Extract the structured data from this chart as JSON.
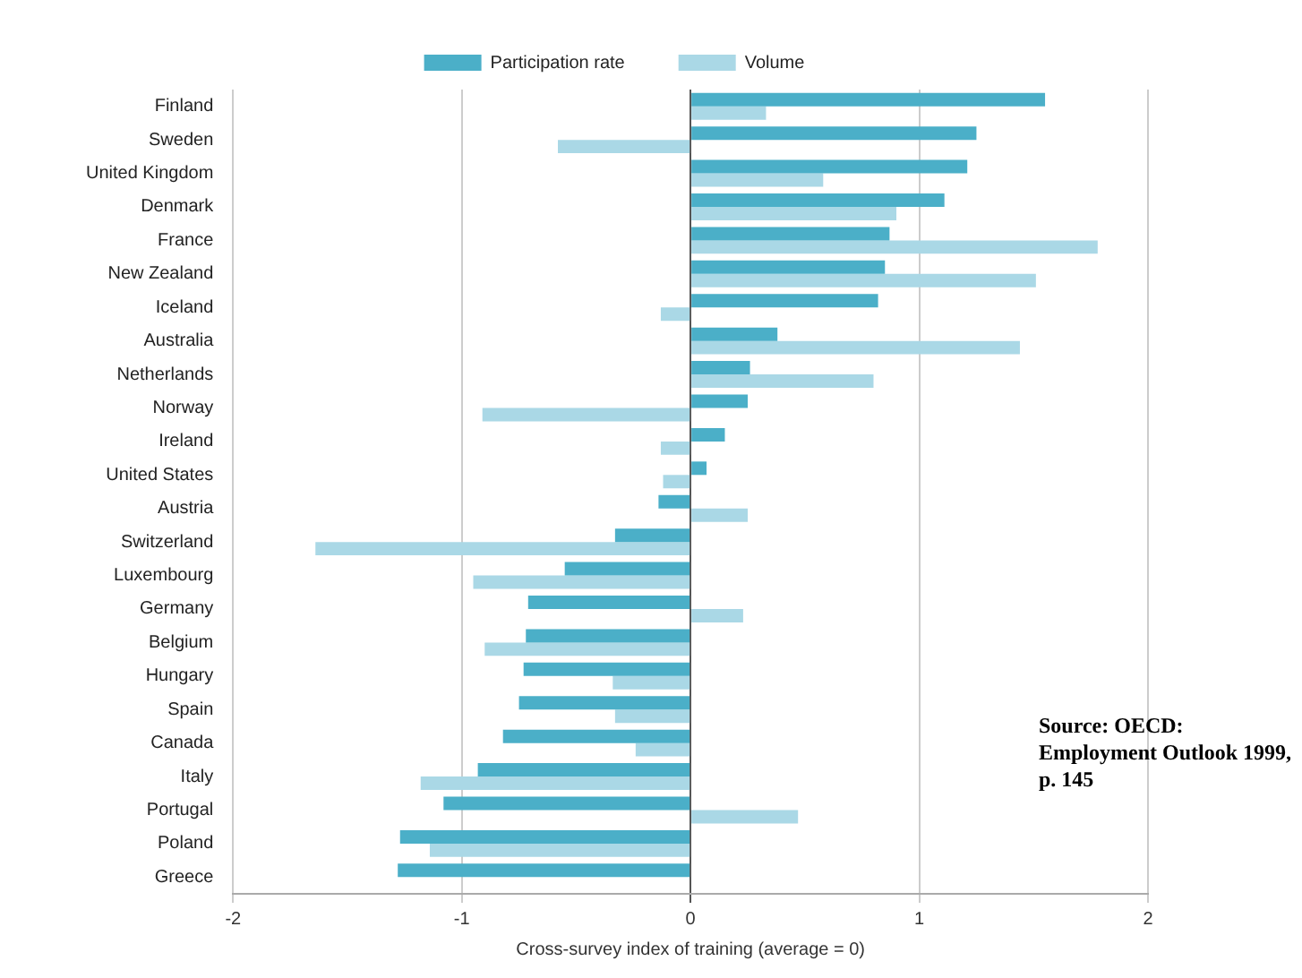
{
  "chart_data": {
    "type": "bar",
    "orientation": "horizontal",
    "xlabel": "Cross-survey index of training (average = 0)",
    "categories": [
      "Finland",
      "Sweden",
      "United Kingdom",
      "Denmark",
      "France",
      "New Zealand",
      "Iceland",
      "Australia",
      "Netherlands",
      "Norway",
      "Ireland",
      "United States",
      "Austria",
      "Switzerland",
      "Luxembourg",
      "Germany",
      "Belgium",
      "Hungary",
      "Spain",
      "Canada",
      "Italy",
      "Portugal",
      "Poland",
      "Greece"
    ],
    "series": [
      {
        "name": "Participation rate",
        "color": "#4bafc8",
        "values": [
          1.55,
          1.25,
          1.21,
          1.11,
          0.87,
          0.85,
          0.82,
          0.38,
          0.26,
          0.25,
          0.15,
          0.07,
          -0.14,
          -0.33,
          -0.55,
          -0.71,
          -0.72,
          -0.73,
          -0.75,
          -0.82,
          -0.93,
          -1.08,
          -1.27,
          -1.28
        ]
      },
      {
        "name": "Volume",
        "color": "#aad8e6",
        "values": [
          0.33,
          -0.58,
          0.58,
          0.9,
          1.78,
          1.51,
          -0.13,
          1.44,
          0.8,
          -0.91,
          -0.13,
          -0.12,
          0.25,
          -1.64,
          -0.95,
          0.23,
          -0.9,
          -0.34,
          -0.33,
          -0.24,
          -1.18,
          0.47,
          -1.14,
          null
        ]
      }
    ],
    "xlim": [
      -2,
      2
    ],
    "xticks": [
      -2,
      -1,
      0,
      1,
      2
    ],
    "grid": "x",
    "legend": "top",
    "annotations": [
      "Source: OECD: Employment Outlook 1999, p. 145"
    ]
  }
}
